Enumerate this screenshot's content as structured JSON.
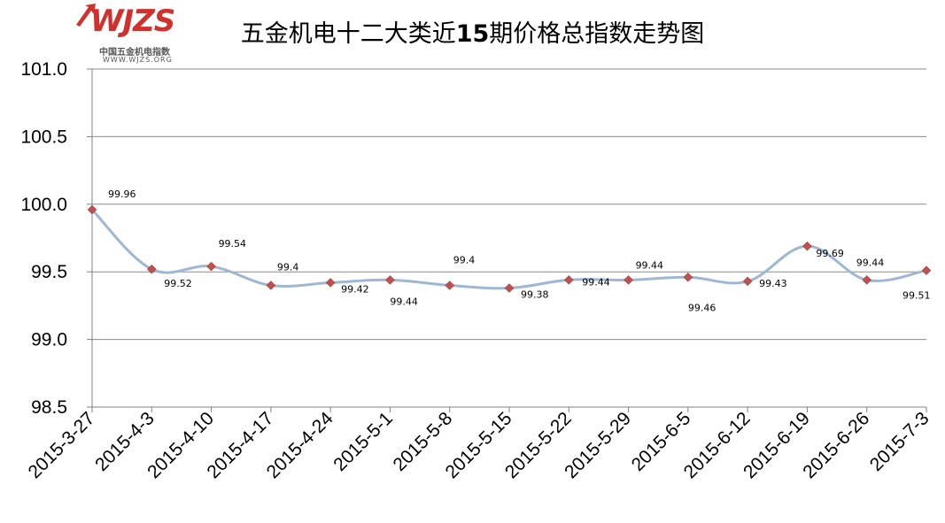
{
  "logo": {
    "word": "WJZS",
    "cn": "中国五金机电指数",
    "url": "WWW.WJZS.ORG"
  },
  "chart_data": {
    "type": "line",
    "title_prefix": "五金机电十二大类近",
    "title_num": "15",
    "title_suffix": "期价格总指数走势图",
    "categories": [
      "2015-3-27",
      "2015-4-3",
      "2015-4-10",
      "2015-4-17",
      "2015-4-24",
      "2015-5-1",
      "2015-5-8",
      "2015-5-15",
      "2015-5-22",
      "2015-5-29",
      "2015-6-5",
      "2015-6-12",
      "2015-6-19",
      "2015-6-26",
      "2015-7-3"
    ],
    "values": [
      99.96,
      99.52,
      99.54,
      99.4,
      99.42,
      99.44,
      99.4,
      99.38,
      99.44,
      99.44,
      99.46,
      99.43,
      99.69,
      99.44,
      99.51
    ],
    "data_labels": [
      "99.96",
      "99.52",
      "99.54",
      "99.4",
      "99.42",
      "99.44",
      "99.4",
      "99.38",
      "99.44",
      "99.44",
      "99.46",
      "99.43",
      "99.69",
      "99.44",
      "99.51"
    ],
    "ylim": [
      98.5,
      101.0
    ],
    "yticks": [
      "98.5",
      "99.0",
      "99.5",
      "100.0",
      "100.5",
      "101.0"
    ],
    "grid": true,
    "line_color": "#9db7d5",
    "marker_color": "#c0504d"
  }
}
